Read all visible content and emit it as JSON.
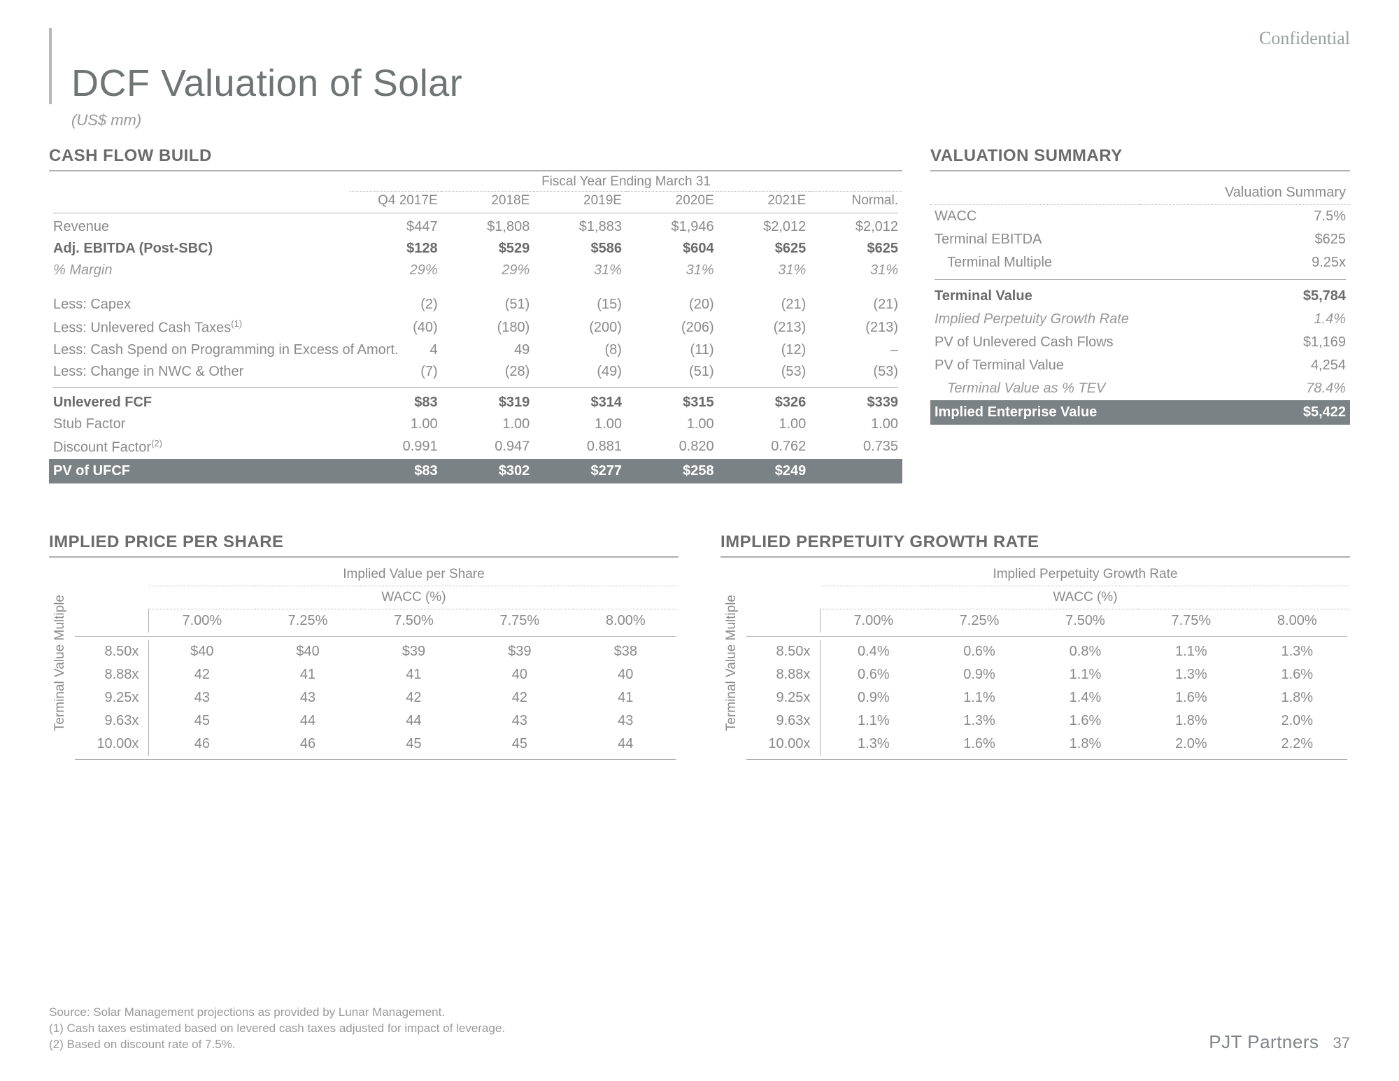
{
  "meta": {
    "confidential": "Confidential",
    "title": "DCF Valuation of Solar",
    "units": "(US$ mm)",
    "brand": "PJT Partners",
    "page_number": "37"
  },
  "colors": {
    "text_primary": "#6f7474",
    "text_muted": "#8a8a8a",
    "rule": "#b0b0b0",
    "dark_row_bg": "#7a8286",
    "dark_row_text": "#ffffff"
  },
  "cash_flow": {
    "section_title": "CASH FLOW BUILD",
    "fy_header": "Fiscal Year Ending March 31",
    "columns": [
      "Q4 2017E",
      "2018E",
      "2019E",
      "2020E",
      "2021E",
      "Normal."
    ],
    "rows": [
      {
        "label": "Revenue",
        "style": "lbl",
        "values": [
          "$447",
          "$1,808",
          "$1,883",
          "$1,946",
          "$2,012",
          "$2,012"
        ]
      },
      {
        "label": "Adj. EBITDA (Post-SBC)",
        "style": "bold",
        "values": [
          "$128",
          "$529",
          "$586",
          "$604",
          "$625",
          "$625"
        ]
      },
      {
        "label": "% Margin",
        "style": "italic",
        "values": [
          "29%",
          "29%",
          "31%",
          "31%",
          "31%",
          "31%"
        ]
      },
      {
        "type": "spacer"
      },
      {
        "label": "Less: Capex",
        "style": "lbl",
        "values": [
          "(2)",
          "(51)",
          "(15)",
          "(20)",
          "(21)",
          "(21)"
        ]
      },
      {
        "label": "Less: Unlevered Cash Taxes",
        "sup": "(1)",
        "style": "lbl",
        "values": [
          "(40)",
          "(180)",
          "(200)",
          "(206)",
          "(213)",
          "(213)"
        ]
      },
      {
        "label": "Less: Cash Spend on Programming in Excess of Amort.",
        "style": "lbl",
        "values": [
          "4",
          "49",
          "(8)",
          "(11)",
          "(12)",
          "–"
        ]
      },
      {
        "label": "Less: Change in NWC & Other",
        "style": "lbl",
        "values": [
          "(7)",
          "(28)",
          "(49)",
          "(51)",
          "(53)",
          "(53)"
        ]
      },
      {
        "type": "rule"
      },
      {
        "label": "Unlevered FCF",
        "style": "bold",
        "values": [
          "$83",
          "$319",
          "$314",
          "$315",
          "$326",
          "$339"
        ]
      },
      {
        "label": "Stub Factor",
        "style": "lbl",
        "values": [
          "1.00",
          "1.00",
          "1.00",
          "1.00",
          "1.00",
          "1.00"
        ]
      },
      {
        "label": "Discount Factor",
        "sup": "(2)",
        "style": "lbl",
        "values": [
          "0.991",
          "0.947",
          "0.881",
          "0.820",
          "0.762",
          "0.735"
        ]
      },
      {
        "type": "dark",
        "label": "PV of UFCF",
        "values": [
          "$83",
          "$302",
          "$277",
          "$258",
          "$249",
          ""
        ]
      }
    ]
  },
  "valuation_summary": {
    "section_title": "VALUATION SUMMARY",
    "header": "Valuation Summary",
    "rows": [
      {
        "label": "WACC",
        "value": "7.5%",
        "style": "plain"
      },
      {
        "label": "Terminal EBITDA",
        "value": "$625",
        "style": "plain"
      },
      {
        "label": "Terminal Multiple",
        "value": "9.25x",
        "style": "indent"
      },
      {
        "type": "rule"
      },
      {
        "label": "Terminal Value",
        "value": "$5,784",
        "style": "bold"
      },
      {
        "label": "Implied Perpetuity Growth Rate",
        "value": "1.4%",
        "style": "italic"
      },
      {
        "label": "PV of Unlevered Cash Flows",
        "value": "$1,169",
        "style": "plain"
      },
      {
        "label": "PV of Terminal Value",
        "value": "4,254",
        "style": "plain"
      },
      {
        "label": "Terminal Value as % TEV",
        "value": "78.4%",
        "style": "italic-indent"
      },
      {
        "type": "dark",
        "label": "Implied Enterprise Value",
        "value": "$5,422"
      }
    ]
  },
  "implied_price": {
    "section_title": "IMPLIED PRICE PER SHARE",
    "super_header": "Implied Value per Share",
    "sub_header": "WACC (%)",
    "row_axis_label": "Terminal Value\nMultiple",
    "wacc_cols": [
      "7.00%",
      "7.25%",
      "7.50%",
      "7.75%",
      "8.00%"
    ],
    "multiples": [
      "8.50x",
      "8.88x",
      "9.25x",
      "9.63x",
      "10.00x"
    ],
    "grid": [
      [
        "$40",
        "$40",
        "$39",
        "$39",
        "$38"
      ],
      [
        "42",
        "41",
        "41",
        "40",
        "40"
      ],
      [
        "43",
        "43",
        "42",
        "42",
        "41"
      ],
      [
        "45",
        "44",
        "44",
        "43",
        "43"
      ],
      [
        "46",
        "46",
        "45",
        "45",
        "44"
      ]
    ]
  },
  "implied_growth": {
    "section_title": "IMPLIED PERPETUITY GROWTH RATE",
    "super_header": "Implied Perpetuity Growth Rate",
    "sub_header": "WACC (%)",
    "row_axis_label": "Terminal Value\nMultiple",
    "wacc_cols": [
      "7.00%",
      "7.25%",
      "7.50%",
      "7.75%",
      "8.00%"
    ],
    "multiples": [
      "8.50x",
      "8.88x",
      "9.25x",
      "9.63x",
      "10.00x"
    ],
    "grid": [
      [
        "0.4%",
        "0.6%",
        "0.8%",
        "1.1%",
        "1.3%"
      ],
      [
        "0.6%",
        "0.9%",
        "1.1%",
        "1.3%",
        "1.6%"
      ],
      [
        "0.9%",
        "1.1%",
        "1.4%",
        "1.6%",
        "1.8%"
      ],
      [
        "1.1%",
        "1.3%",
        "1.6%",
        "1.8%",
        "2.0%"
      ],
      [
        "1.3%",
        "1.6%",
        "1.8%",
        "2.0%",
        "2.2%"
      ]
    ]
  },
  "footnotes": {
    "source": "Source: Solar Management projections as provided by Lunar Management.",
    "n1": "(1)  Cash taxes estimated based on levered cash taxes adjusted for impact of leverage.",
    "n2": "(2)  Based on discount rate of 7.5%."
  }
}
